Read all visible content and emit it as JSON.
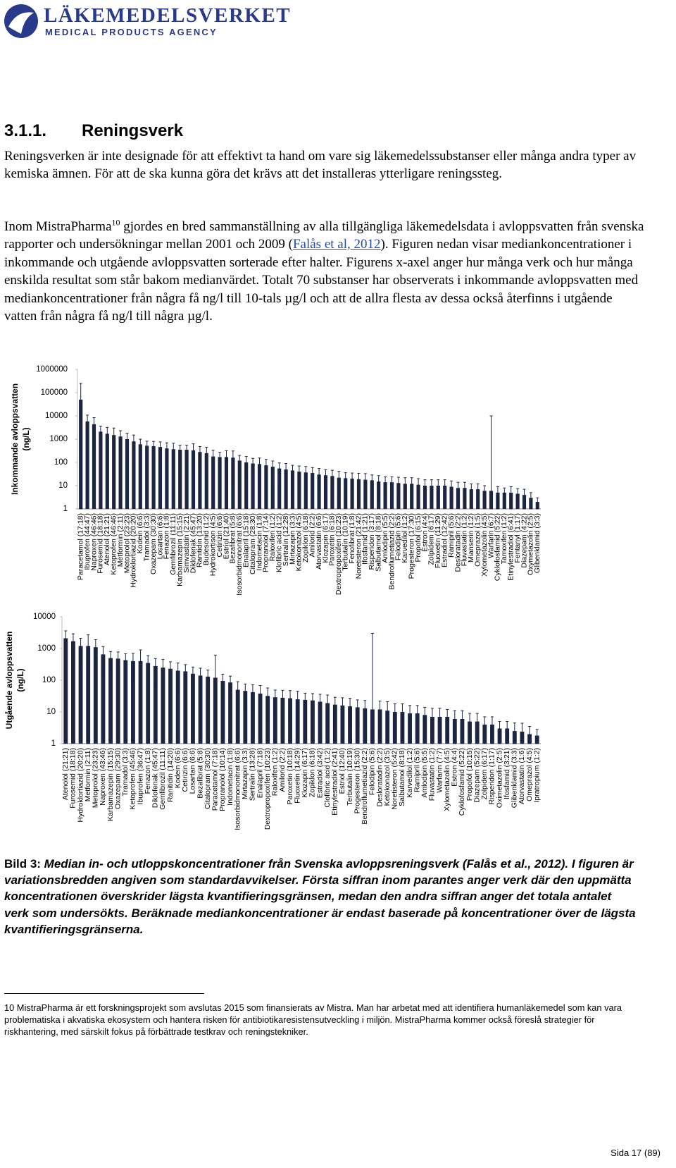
{
  "header": {
    "logo_title": "LÄKEMEDELSVERKET",
    "logo_subtitle": "MEDICAL PRODUCTS AGENCY"
  },
  "section": {
    "number": "3.1.1.",
    "title": "Reningsverk"
  },
  "paragraph1": "Reningsverken är inte designade för att effektivt ta hand om vare sig läkemedelssubstanser eller många andra typer av kemiska ämnen. För att de ska kunna göra det krävs att det installeras ytterligare reningssteg.",
  "paragraph2": {
    "text_before": "Inom MistraPharma",
    "footnote_ref": "10",
    "text_mid": " gjordes en bred sammanställning av alla tillgängliga läkemedelsdata i avloppsvatten från svenska rapporter och undersökningar mellan 2001 och 2009 (",
    "link": "Falås et al, 2012",
    "text_after": "). Figuren nedan visar mediankoncentrationer i inkommande och utgående avloppsvatten sorterade efter halter. Figurens x-axel anger hur många verk och hur många enskilda resultat som står bakom medianvärdet. Totalt 70 substanser har observerats i inkommande avloppsvatten med mediankoncentrationer från några få ng/l till 10-tals µg/l och att de allra flesta av dessa också återfinns i utgående vatten från några få ng/l till några µg/l."
  },
  "chart_data": [
    {
      "type": "bar",
      "ylabel": [
        "Inkommande avloppsvatten",
        "(ng/L)"
      ],
      "log_scale": true,
      "grid": false,
      "color": "#1c2541",
      "ylim": [
        1,
        1000000
      ],
      "yticks": [
        1,
        10,
        100,
        1000,
        10000,
        100000,
        1000000
      ],
      "categories": [
        "Paracetamol (17:18)",
        "Ibuprofen (44:47)",
        "Naproxen (46:46)",
        "Furosemid (18:18)",
        "Atenolol (21:21)",
        "Ketoprofen (46:46)",
        "Metformin (2:11)",
        "Metoprolol (23:23)",
        "Hydroklortiazid (20:20)",
        "Kodein (6:6)",
        "Tramadol (3:3)",
        "Oxazepam (30:30)",
        "Losartan (6:6)",
        "Fenazon (1:8)",
        "Gemfibrozil (11:11)",
        "Karbamazepin (15:15)",
        "Simvastatin (2:21)",
        "Diklofenak (45:47)",
        "Ranitidin (13:20)",
        "Budesonid (1:2)",
        "Hydrokortison (4:5)",
        "Cetirizin (6:6)",
        "Estriol (21:40)",
        "Bezafibrat (5:8)",
        "Isosorbidmononitrat (6:6)",
        "Enalapril (15:18)",
        "Citalopram (28:30)",
        "Indometacin (1:8)",
        "Propranolol (7:14)",
        "Raloxifen (1:2)",
        "Klofibric acid (1:2)",
        "Sertralin (12:28)",
        "Mirtazapin (3:3)",
        "Ketokonazol (4:5)",
        "Zopiklon (6:18)",
        "Amilorid (2:2)",
        "Atorvastatin (6:6)",
        "Klozapin (6:17)",
        "Paroxetin (6:18)",
        "Dextropropoxifen (10:23)",
        "Terbutalin (10:19)",
        "Fenofibrat (1:8)",
        "Noretisteron (21:42)",
        "Ifosfamid (1:21)",
        "Risperidon (3:17)",
        "Salbutamol (8:18)",
        "Amlodipin (5:5)",
        "Bendroflumetiazid (2:2)",
        "Felodipin (5:6)",
        "Karvedilol (1:2)",
        "Progesteron (17:30)",
        "Propofol (6:15)",
        "Estron (4:4)",
        "Zolpidem (6:17)",
        "Fluoxetin (11:29)",
        "Estradiol (12:42)",
        "Ramipril (5:6)",
        "Desloratadin (2:2)",
        "Fluvastatin (1:2)",
        "Mianserin (1:2)",
        "Omeprazol (1:5)",
        "Xylometazolin (4:5)",
        "Warfarin (6:7)",
        "Cyklofosfamid (5:22)",
        "Tamoxifen (1:2)",
        "Etinylestradiol (6:41)",
        "Fentanyl (1:17)",
        "Diazepam (4:22)",
        "Oxymetazolin (2:5)",
        "Glibenklamid (3:3)"
      ],
      "values": [
        50000,
        5800,
        4400,
        2100,
        1700,
        1500,
        1300,
        1000,
        800,
        600,
        520,
        500,
        460,
        400,
        370,
        350,
        350,
        330,
        280,
        250,
        180,
        170,
        170,
        160,
        120,
        100,
        90,
        85,
        75,
        65,
        55,
        50,
        45,
        40,
        37,
        35,
        30,
        28,
        26,
        22,
        21,
        20,
        19,
        18,
        17,
        15,
        14,
        14,
        13,
        12,
        12,
        11,
        10,
        10,
        10,
        10,
        9,
        8,
        8,
        7,
        7,
        6,
        6,
        5,
        5,
        5,
        4.5,
        4,
        3,
        2
      ],
      "errors": [
        200000,
        5000,
        4000,
        1500,
        1500,
        1500,
        1000,
        800,
        700,
        400,
        300,
        300,
        300,
        300,
        300,
        200,
        200,
        300,
        200,
        200,
        150,
        100,
        150,
        150,
        80,
        80,
        60,
        70,
        60,
        50,
        40,
        40,
        30,
        30,
        30,
        25,
        25,
        20,
        20,
        20,
        15,
        15,
        15,
        15,
        12,
        12,
        10,
        10,
        10,
        10,
        10,
        9,
        8,
        8,
        8,
        8,
        7,
        6,
        6,
        5,
        5,
        4,
        10000,
        4,
        3,
        4,
        3,
        3,
        2,
        1
      ]
    },
    {
      "type": "bar",
      "ylabel": [
        "Utgående avloppsvatten",
        "(ng/L)"
      ],
      "log_scale": true,
      "grid": false,
      "color": "#1c2541",
      "ylim": [
        1,
        10000
      ],
      "yticks": [
        1,
        10,
        100,
        1000,
        10000
      ],
      "categories": [
        "Atenolol (21:21)",
        "Furosemid (18:18)",
        "Hydroklortiazid (20:20)",
        "Metformin (2:11)",
        "Metoprolol (23:23)",
        "Naproxen (43:46)",
        "Karbamazepin (15:15)",
        "Oxazepam (29:30)",
        "Tramadol (3:3)",
        "Ketoprofen (45:46)",
        "Ibuprofen (36:47)",
        "Fenazon (1:8)",
        "Diklofenak (45:47)",
        "Gemfibrozil (11:11)",
        "Ranitidin (14:20)",
        "Kodein (6:6)",
        "Cetirizin (6:6)",
        "Losartan (6:6)",
        "Bezafibrat (5:8)",
        "Citalopram (30:30)",
        "Paracetamol (7:18)",
        "Propranolol (10:14)",
        "Indometacin (1:8)",
        "Isosorbidmononitrat (6:6)",
        "Mirtazapin (3:3)",
        "Sertralin (13:28)",
        "Enalapril (7:18)",
        "Dextropropoxifen (10:23)",
        "Raloxifen (1:2)",
        "Amilorid (2:2)",
        "Paroxetin (10:18)",
        "Fluoxetin (14:29)",
        "Klozapin (6:17)",
        "Zopiklon (6:18)",
        "Estradiol (3:42)",
        "Clofibric acid (1:2)",
        "Etinylestradiol (2:41)",
        "Estriol (12:40)",
        "Terbutalin (10:19)",
        "Progesteron (15:30)",
        "Bendroflumetiazid (2:2)",
        "Felodipin (5:6)",
        "Desloratadin (2:2)",
        "Ketokonazol (3:5)",
        "Noretisteron (5:42)",
        "Salbutamol (8:18)",
        "Karvedilol (1:2)",
        "Ramipril (5:6)",
        "Amlodipin (5:5)",
        "Fluvastatin (1:2)",
        "Warfarin (7:7)",
        "Xylometazolin (4:5)",
        "Estron (4:4)",
        "Cyklofosfamid (5:22)",
        "Propofol (10:15)",
        "Diazepam (5:22)",
        "Zolpidem (6:17)",
        "Risperidon (1:17)",
        "Oximetazolin (2:5)",
        "Ifosfamid (3:21)",
        "Glibenklamid (3:3)",
        "Atorvastatin (1:6)",
        "Omeprazol (4:5)",
        "Ipratropium (1:2)"
      ],
      "values": [
        2100,
        1700,
        1200,
        1200,
        1100,
        650,
        500,
        480,
        430,
        400,
        400,
        350,
        280,
        250,
        230,
        200,
        190,
        160,
        140,
        130,
        120,
        95,
        85,
        50,
        46,
        42,
        38,
        32,
        29,
        28,
        27,
        25,
        24,
        23,
        21,
        19,
        17,
        16,
        15,
        14,
        13,
        12,
        12,
        11,
        10,
        10,
        9,
        9,
        8,
        7,
        7,
        7,
        6,
        6,
        5,
        5,
        4,
        4,
        3,
        3,
        2.5,
        2.4,
        2,
        1.8
      ],
      "errors": [
        1500,
        1200,
        900,
        1500,
        800,
        500,
        300,
        300,
        250,
        300,
        500,
        250,
        200,
        200,
        150,
        150,
        120,
        100,
        100,
        80,
        500,
        60,
        50,
        40,
        30,
        30,
        30,
        25,
        20,
        20,
        20,
        20,
        15,
        15,
        15,
        15,
        12,
        12,
        12,
        10,
        10,
        3000,
        10,
        10,
        8,
        8,
        7,
        7,
        6,
        6,
        6,
        5,
        5,
        5,
        4,
        4,
        3,
        3,
        2,
        2,
        2,
        2,
        1.5,
        1
      ]
    }
  ],
  "caption": {
    "label": "Bild 3:",
    "text": " Median in- och utloppskoncentrationer från Svenska avloppsreningsverk (Falås et al., 2012). I figuren är variationsbredden angiven som standardavvikelser. Första siffran inom parantes anger verk där den uppmätta koncentrationen överskrider lägsta kvantifieringsgränsen, medan den andra siffran anger det totala antalet verk som undersökts. Beräknade mediankoncentrationer är endast baserade på koncentrationer över de lägsta kvantifieringsgränserna."
  },
  "footnote": {
    "number": "10",
    "text": " MistraPharma är ett forskningsprojekt som avslutas 2015 som finansierats av Mistra. Man har arbetat med att identifiera humanläkemedel som kan vara problematiska i akvatiska ekosystem och hantera risken för antibiotikaresistensutveckling i miljön. MistraPharma kommer också föreslå strategier för riskhantering, med särskilt fokus på förbättrade testkrav och reningstekniker."
  },
  "page_number": "Sida 17 (89)"
}
